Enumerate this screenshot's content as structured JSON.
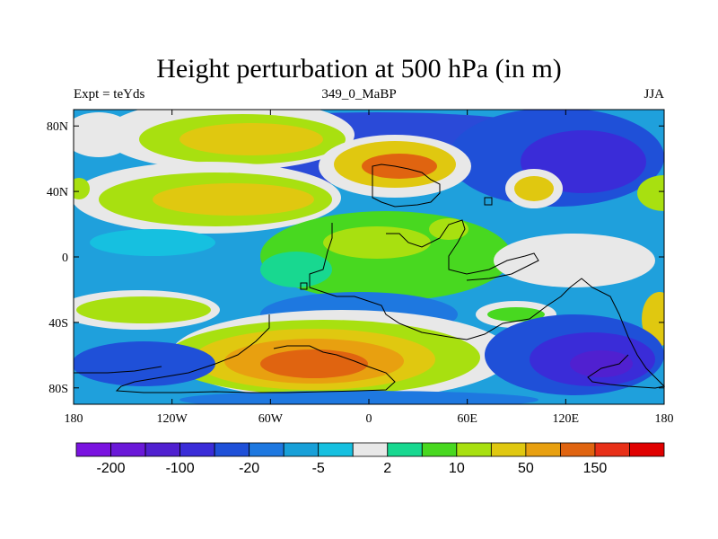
{
  "chart_data": {
    "type": "heatmap",
    "title": "Height perturbation at 500 hPa (in m)",
    "subtitle_left": "Expt = teYds",
    "subtitle_center": "349_0_MaBP",
    "subtitle_right": "JJA",
    "x_range": [
      -180,
      180
    ],
    "y_range": [
      -90,
      90
    ],
    "x_ticks": [
      {
        "value": -180,
        "label": "180"
      },
      {
        "value": -120,
        "label": "120W"
      },
      {
        "value": -60,
        "label": "60W"
      },
      {
        "value": 0,
        "label": "0"
      },
      {
        "value": 60,
        "label": "60E"
      },
      {
        "value": 120,
        "label": "120E"
      },
      {
        "value": 180,
        "label": "180"
      }
    ],
    "y_ticks": [
      {
        "value": 80,
        "label": "80N"
      },
      {
        "value": 40,
        "label": "40N"
      },
      {
        "value": 0,
        "label": "0"
      },
      {
        "value": -40,
        "label": "40S"
      },
      {
        "value": -80,
        "label": "80S"
      }
    ],
    "colorbar": {
      "colors": [
        "#7a13e0",
        "#6a18d8",
        "#5020d0",
        "#3a2cd8",
        "#1f50d8",
        "#1e78e0",
        "#18a0d8",
        "#16c0e0",
        "#e8e8e8",
        "#18d890",
        "#48d820",
        "#a8e010",
        "#e0c810",
        "#e8a010",
        "#e06410",
        "#e83018",
        "#e00000"
      ],
      "labels": [
        {
          "index": 1,
          "label": "-200"
        },
        {
          "index": 3,
          "label": "-100"
        },
        {
          "index": 5,
          "label": "-20"
        },
        {
          "index": 7,
          "label": "-5"
        },
        {
          "index": 9,
          "label": "2"
        },
        {
          "index": 11,
          "label": "10"
        },
        {
          "index": 13,
          "label": "50"
        },
        {
          "index": 15,
          "label": "150"
        }
      ]
    }
  }
}
